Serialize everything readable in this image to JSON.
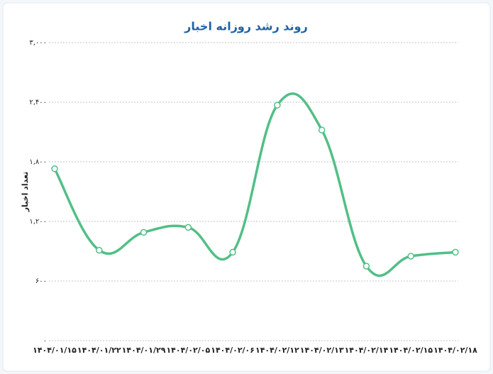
{
  "chart_data": {
    "type": "line",
    "title": "روند رشد روزانه اخبار",
    "y_label": "تعداد اخبار",
    "categories": [
      "۱۴۰۴/۰۱/۱۵",
      "۱۴۰۴/۰۱/۲۲",
      "۱۴۰۴/۰۱/۲۹",
      "۱۴۰۴/۰۲/۰۵",
      "۱۴۰۴/۰۲/۰۶",
      "۱۴۰۴/۰۲/۱۲",
      "۱۴۰۴/۰۲/۱۳",
      "۱۴۰۴/۰۲/۱۴",
      "۱۴۰۴/۰۲/۱۵",
      "۱۴۰۴/۰۲/۱۸"
    ],
    "series": [
      {
        "name": "تعداد اخبار",
        "color": "#52bf86",
        "values": [
          1730,
          910,
          1090,
          1140,
          890,
          2370,
          2120,
          750,
          850,
          890
        ]
      }
    ],
    "ylim": [
      0,
      3000
    ],
    "yticks": [
      {
        "value": 0,
        "label": "۰"
      },
      {
        "value": 600,
        "label": "۶۰۰"
      },
      {
        "value": 1200,
        "label": "۱,۲۰۰"
      },
      {
        "value": 1800,
        "label": "۱,۸۰۰"
      },
      {
        "value": 2400,
        "label": "۲,۴۰۰"
      },
      {
        "value": 3000,
        "label": "۳,۰۰۰"
      }
    ],
    "grid": true
  }
}
